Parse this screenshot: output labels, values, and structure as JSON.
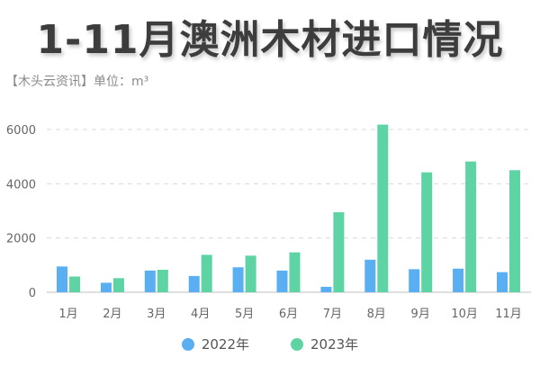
{
  "title": "1-11月澳洲木材进口情况",
  "subtitle": "【木头云资讯】单位：m³",
  "colors": {
    "series_2022": "#5aaef2",
    "series_2023": "#5ed4a4",
    "grid": "#d9d9d9",
    "axis": "#cccccc"
  },
  "chart_data": {
    "type": "bar",
    "categories": [
      "1月",
      "2月",
      "3月",
      "4月",
      "5月",
      "6月",
      "7月",
      "8月",
      "9月",
      "10月",
      "11月"
    ],
    "series": [
      {
        "name": "2022年",
        "values": [
          950,
          350,
          800,
          600,
          920,
          800,
          200,
          1200,
          850,
          870,
          740
        ]
      },
      {
        "name": "2023年",
        "values": [
          580,
          520,
          830,
          1380,
          1350,
          1470,
          2950,
          6180,
          4420,
          4820,
          4500
        ]
      }
    ],
    "yticks": [
      "0",
      "2000",
      "4000",
      "6000"
    ],
    "ytick_values": [
      0,
      2000,
      4000,
      6000
    ],
    "ylim": [
      0,
      6300
    ],
    "grid": true,
    "legend_position": "bottom-center"
  }
}
